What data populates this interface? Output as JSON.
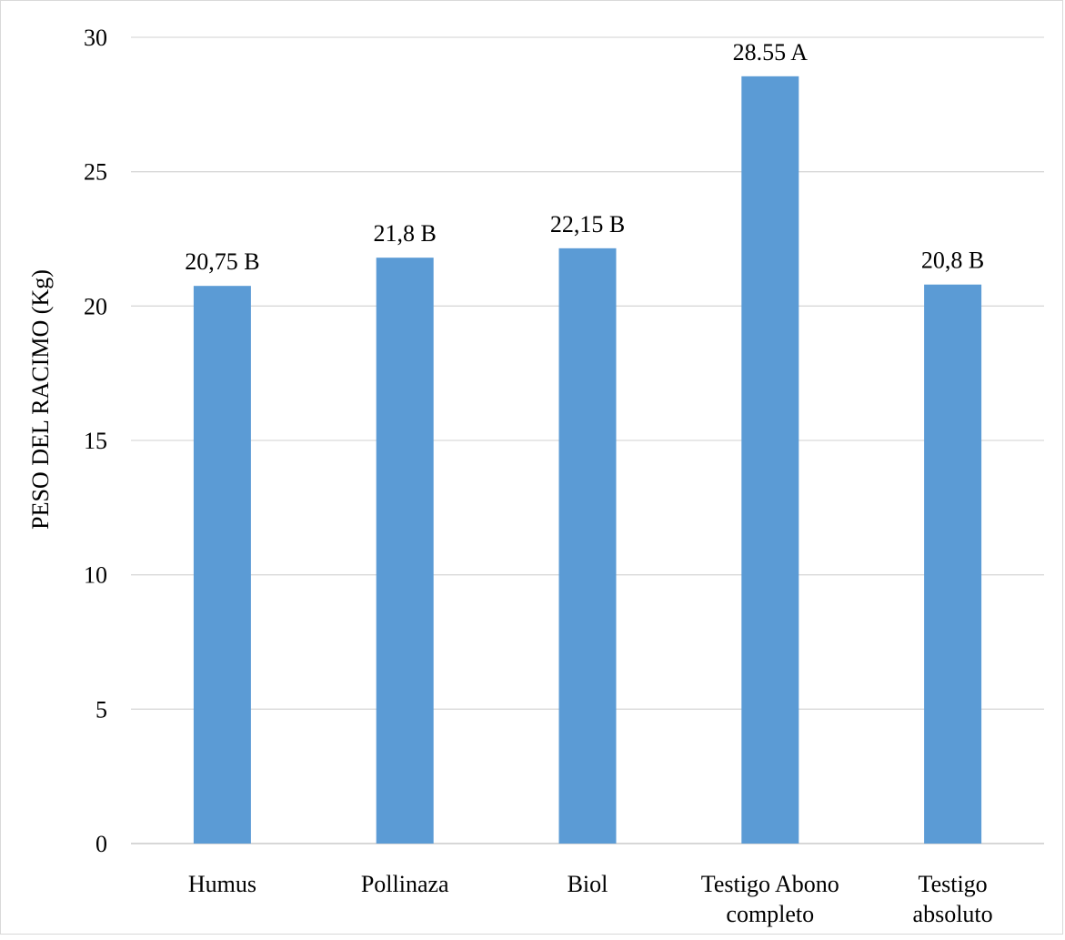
{
  "chart_data": {
    "type": "bar",
    "title": "",
    "xlabel": "",
    "ylabel": "PESO DEL RACIMO (Kg)",
    "categories": [
      [
        "Humus"
      ],
      [
        "Pollinaza"
      ],
      [
        "Biol"
      ],
      [
        "Testigo Abono",
        "completo"
      ],
      [
        "Testigo",
        "absoluto"
      ]
    ],
    "values": [
      20.75,
      21.8,
      22.15,
      28.55,
      20.8
    ],
    "data_labels": [
      "20,75 B",
      "21,8 B",
      "22,15 B",
      "28.55 A",
      "20,8 B"
    ],
    "ylim": [
      0,
      30
    ],
    "yticks": [
      0,
      5,
      10,
      15,
      20,
      25,
      30
    ],
    "grid": true,
    "legend": "none",
    "colors": {
      "bar": "#5b9bd5",
      "grid": "#d9d9d9",
      "axis": "#bfbfbf",
      "frame": "#d9d9d9"
    }
  }
}
